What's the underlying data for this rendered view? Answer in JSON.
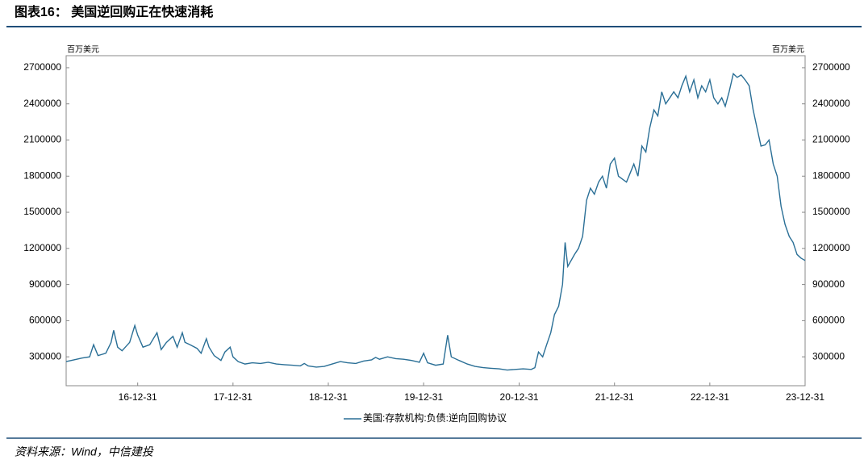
{
  "chart_data": {
    "type": "line",
    "title": "图表16：  美国逆回购正在快速消耗",
    "y_unit_label": "百万美元",
    "y2_unit_label": "百万美元",
    "source": "资料来源：Wind，中信建投",
    "x": [
      "16-04-01",
      "16-05-01",
      "16-06-01",
      "16-06-30",
      "16-07-15",
      "16-08-01",
      "16-08-31",
      "16-09-20",
      "16-09-30",
      "16-10-15",
      "16-11-01",
      "16-11-30",
      "16-12-20",
      "16-12-31",
      "17-01-20",
      "17-02-15",
      "17-03-15",
      "17-03-31",
      "17-04-20",
      "17-05-15",
      "17-05-31",
      "17-06-20",
      "17-06-30",
      "17-07-20",
      "17-08-15",
      "17-08-31",
      "17-09-20",
      "17-09-30",
      "17-10-20",
      "17-11-15",
      "17-11-30",
      "17-12-20",
      "17-12-31",
      "18-01-20",
      "18-02-15",
      "18-03-15",
      "18-04-15",
      "18-05-15",
      "18-06-15",
      "18-07-15",
      "18-08-15",
      "18-09-15",
      "18-09-30",
      "18-10-15",
      "18-11-15",
      "18-12-15",
      "19-01-15",
      "19-02-15",
      "19-03-15",
      "19-04-15",
      "19-05-15",
      "19-06-15",
      "19-06-30",
      "19-07-15",
      "19-08-15",
      "19-09-15",
      "19-10-15",
      "19-11-15",
      "19-12-15",
      "19-12-31",
      "20-01-15",
      "20-02-15",
      "20-03-15",
      "20-04-01",
      "20-04-15",
      "20-05-15",
      "20-06-15",
      "20-07-15",
      "20-08-15",
      "20-09-15",
      "20-10-15",
      "20-11-15",
      "20-12-15",
      "21-01-15",
      "21-02-15",
      "21-03-01",
      "21-03-15",
      "21-03-31",
      "21-04-15",
      "21-05-01",
      "21-05-15",
      "21-05-31",
      "21-06-15",
      "21-06-25",
      "21-07-05",
      "21-07-31",
      "21-08-15",
      "21-08-31",
      "21-09-15",
      "21-09-30",
      "21-10-15",
      "21-10-31",
      "21-11-15",
      "21-11-30",
      "21-12-15",
      "21-12-31",
      "22-01-15",
      "22-02-15",
      "22-03-15",
      "22-03-31",
      "22-04-15",
      "22-04-30",
      "22-05-15",
      "22-05-31",
      "22-06-15",
      "22-06-30",
      "22-07-15",
      "22-07-31",
      "22-08-15",
      "22-08-31",
      "22-09-15",
      "22-09-30",
      "22-10-15",
      "22-10-31",
      "22-11-15",
      "22-11-30",
      "22-12-15",
      "22-12-31",
      "23-01-15",
      "23-01-31",
      "23-02-15",
      "23-02-28",
      "23-03-15",
      "23-03-31",
      "23-04-15",
      "23-04-30",
      "23-05-15",
      "23-05-31",
      "23-06-15",
      "23-06-30",
      "23-07-15",
      "23-07-31",
      "23-08-15",
      "23-08-31",
      "23-09-15",
      "23-09-30",
      "23-10-15",
      "23-10-31",
      "23-11-15",
      "23-11-30",
      "23-12-15",
      "23-12-31"
    ],
    "series": [
      {
        "name": "美国:存款机构:负债:逆向回购协议",
        "color": "#2a6f96",
        "values": [
          260000,
          275000,
          290000,
          300000,
          400000,
          310000,
          330000,
          420000,
          520000,
          380000,
          350000,
          420000,
          560000,
          480000,
          380000,
          400000,
          500000,
          360000,
          420000,
          470000,
          380000,
          500000,
          420000,
          400000,
          370000,
          330000,
          450000,
          380000,
          310000,
          270000,
          340000,
          380000,
          300000,
          260000,
          240000,
          250000,
          245000,
          255000,
          240000,
          235000,
          230000,
          225000,
          245000,
          225000,
          215000,
          220000,
          240000,
          260000,
          250000,
          245000,
          265000,
          275000,
          295000,
          280000,
          300000,
          285000,
          280000,
          270000,
          255000,
          330000,
          250000,
          230000,
          240000,
          480000,
          300000,
          270000,
          240000,
          220000,
          210000,
          205000,
          200000,
          190000,
          195000,
          200000,
          195000,
          210000,
          340000,
          300000,
          400000,
          500000,
          650000,
          720000,
          900000,
          1250000,
          1050000,
          1150000,
          1200000,
          1300000,
          1600000,
          1700000,
          1650000,
          1750000,
          1800000,
          1700000,
          1900000,
          1950000,
          1800000,
          1750000,
          1900000,
          1800000,
          2050000,
          2000000,
          2200000,
          2350000,
          2300000,
          2500000,
          2400000,
          2450000,
          2500000,
          2450000,
          2550000,
          2630000,
          2500000,
          2600000,
          2450000,
          2550000,
          2500000,
          2600000,
          2450000,
          2400000,
          2450000,
          2380000,
          2500000,
          2650000,
          2620000,
          2640000,
          2600000,
          2550000,
          2350000,
          2200000,
          2050000,
          2060000,
          2100000,
          1900000,
          1800000,
          1550000,
          1400000,
          1300000,
          1250000,
          1150000,
          1120000,
          1100000
        ]
      }
    ],
    "xlim": [
      "16-04-01",
      "23-12-31"
    ],
    "xticks": [
      "16-12-31",
      "17-12-31",
      "18-12-31",
      "19-12-31",
      "20-12-31",
      "21-12-31",
      "22-12-31",
      "23-12-31"
    ],
    "ylim": [
      60000,
      2800000
    ],
    "yticks": [
      300000,
      600000,
      900000,
      1200000,
      1500000,
      1800000,
      2100000,
      2400000,
      2700000
    ],
    "y2lim": [
      60000,
      2800000
    ],
    "y2ticks": [
      300000,
      600000,
      900000,
      1200000,
      1500000,
      1800000,
      2100000,
      2400000,
      2700000
    ],
    "grid": false,
    "legend": "bottom"
  }
}
